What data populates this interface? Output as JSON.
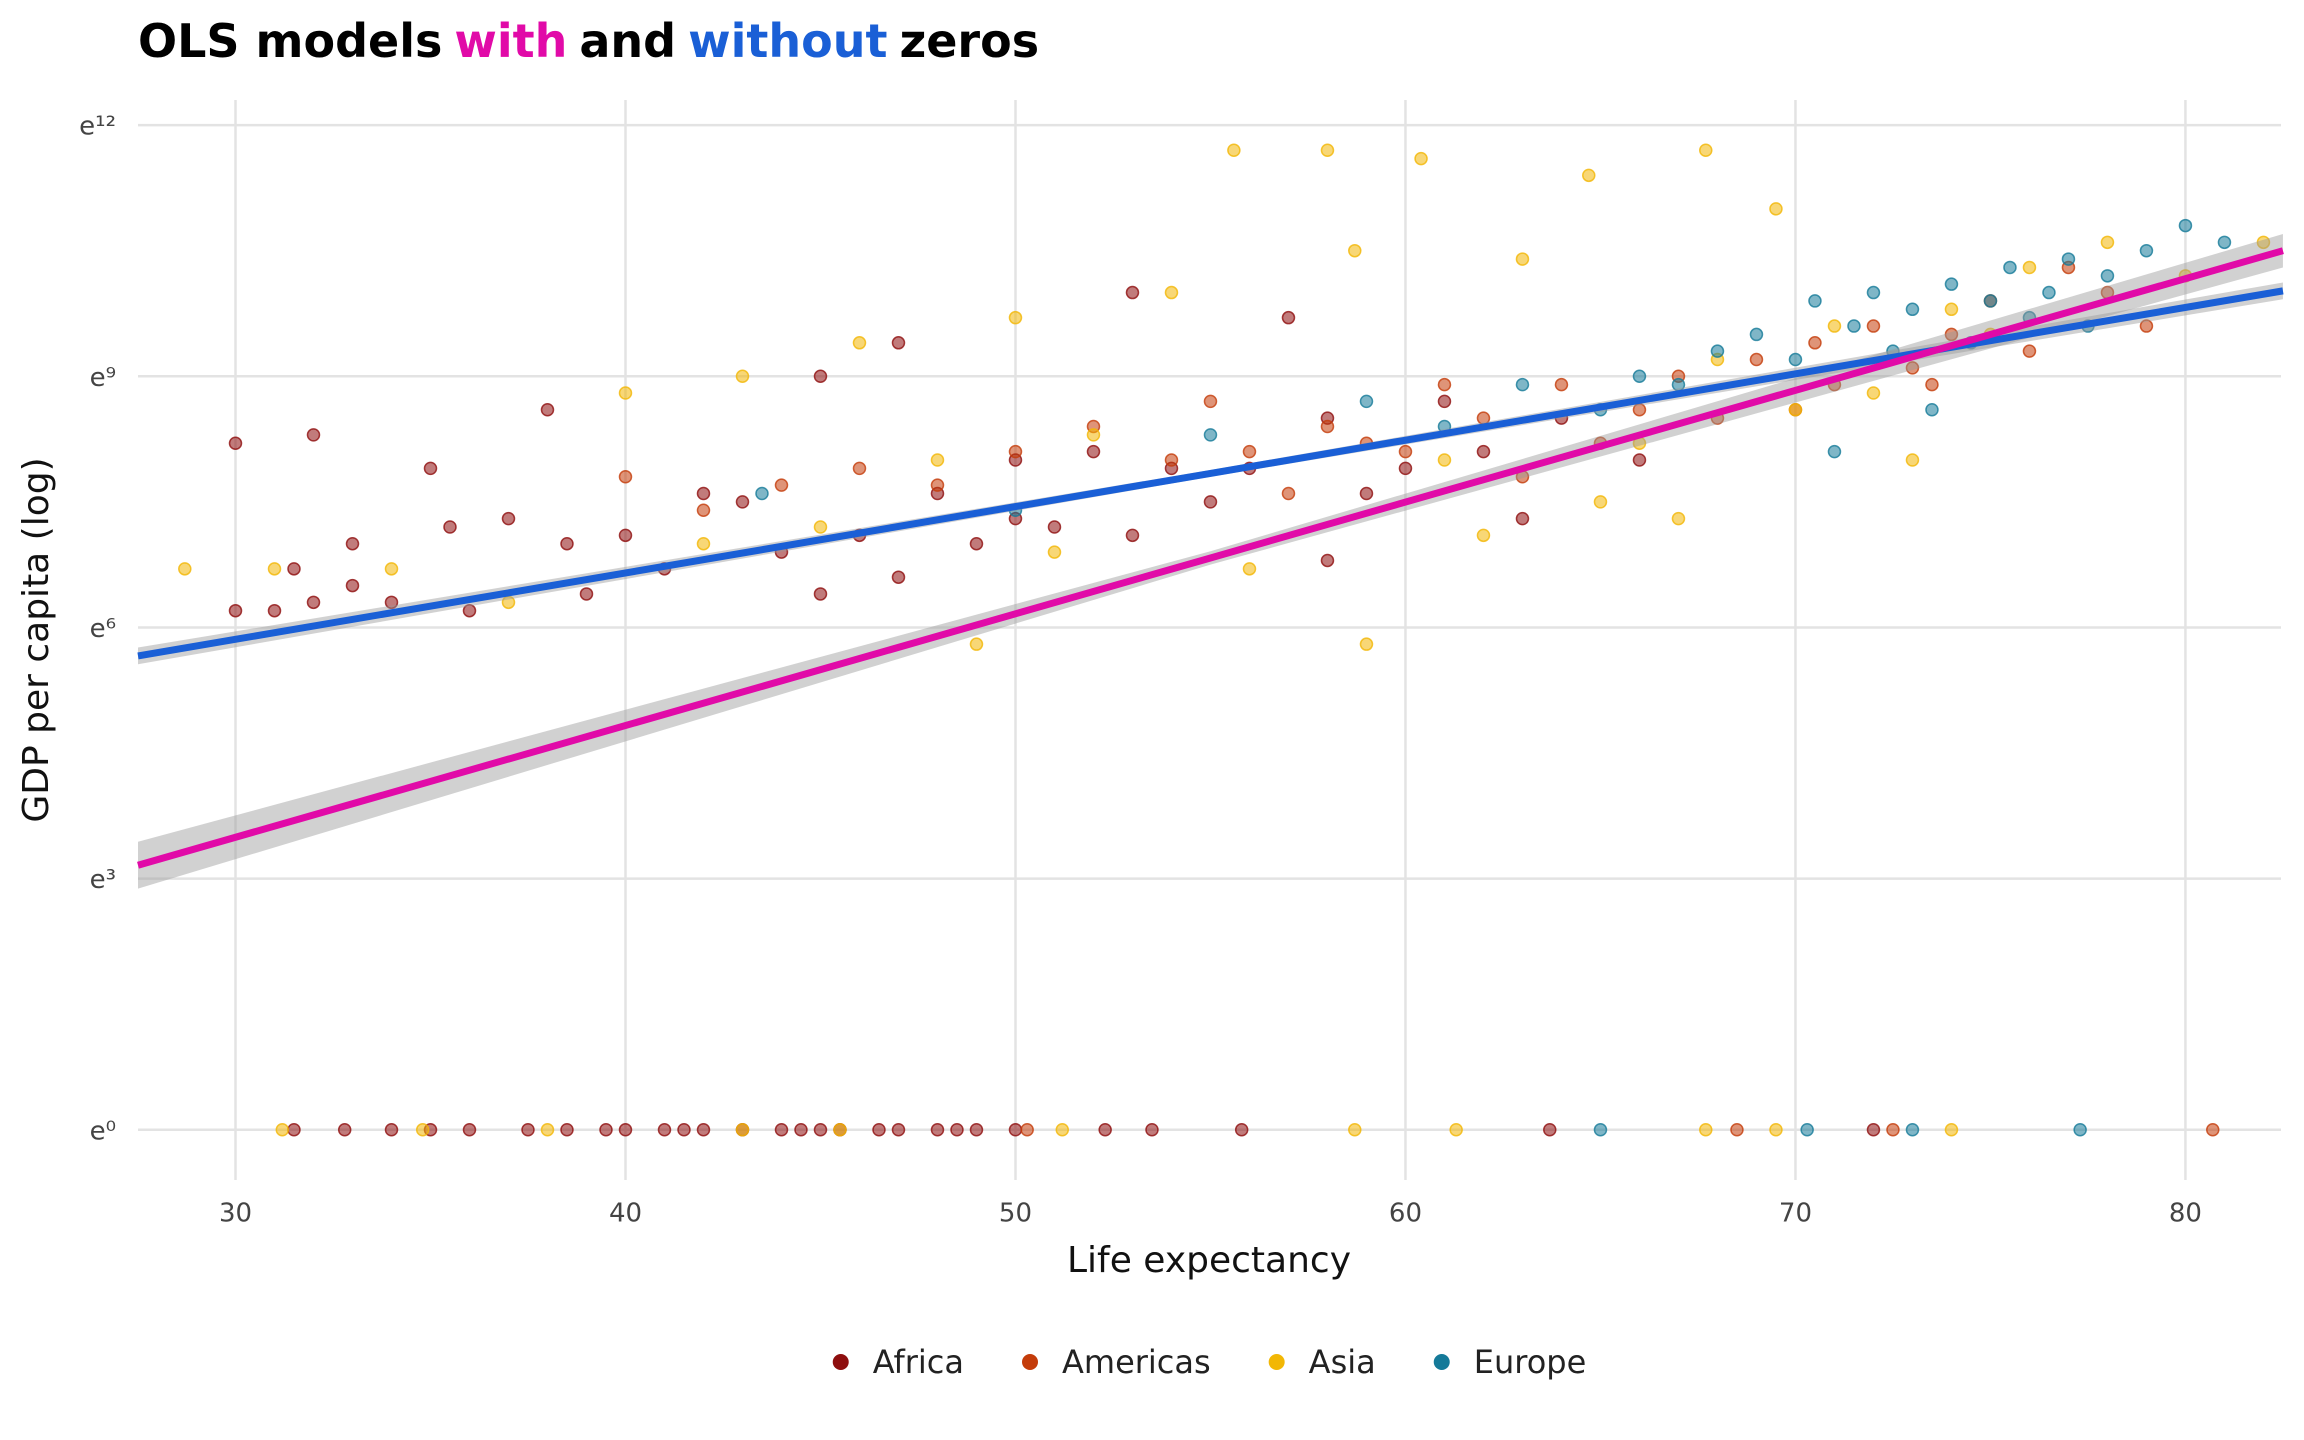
{
  "chart_data": {
    "type": "scatter",
    "title": [
      {
        "text": "OLS models",
        "color": "#000000"
      },
      {
        "text": "with",
        "color": "#e10aa8"
      },
      {
        "text": "and",
        "color": "#000000"
      },
      {
        "text": "without",
        "color": "#1a5fd6"
      },
      {
        "text": "zeros",
        "color": "#000000"
      }
    ],
    "x_label": "Life expectancy",
    "y_label": "GDP per capita (log)",
    "xlim": [
      27.5,
      82.45
    ],
    "ylim": [
      -0.6,
      12.3
    ],
    "xticks": [
      30,
      40,
      50,
      60,
      70,
      80
    ],
    "yticks": [
      {
        "value": 0,
        "label": "e⁰"
      },
      {
        "value": 3,
        "label": "e³"
      },
      {
        "value": 6,
        "label": "e⁶"
      },
      {
        "value": 9,
        "label": "e⁹"
      },
      {
        "value": 12,
        "label": "e¹²"
      }
    ],
    "grid": true,
    "legend": "bottom",
    "series": [
      {
        "name": "Africa",
        "color": "#8e0e0e",
        "x": [
          30,
          30,
          31,
          31.5,
          32,
          32,
          33,
          33,
          34,
          35,
          35.5,
          36,
          37,
          38,
          38.5,
          39,
          40,
          41,
          42,
          43,
          44,
          45,
          45,
          46,
          47,
          47,
          48,
          49,
          50,
          50,
          51,
          52,
          53,
          53,
          54,
          55,
          56,
          57,
          58,
          58,
          59,
          60,
          61,
          62,
          63,
          64,
          66,
          31.5,
          32.8,
          34,
          35,
          36,
          37.5,
          38.5,
          39.5,
          40,
          41,
          41.5,
          42,
          43,
          44,
          44.5,
          45,
          45.5,
          46.5,
          47,
          48,
          48.5,
          49,
          50,
          52.3,
          53.5,
          55.8,
          63.7,
          72
        ],
        "values": [
          8.2,
          6.2,
          6.2,
          6.7,
          8.3,
          6.3,
          6.5,
          7.0,
          6.3,
          7.9,
          7.2,
          6.2,
          7.3,
          8.6,
          7.0,
          6.4,
          7.1,
          6.7,
          7.6,
          7.5,
          6.9,
          9.0,
          6.4,
          7.1,
          9.4,
          6.6,
          7.6,
          7.0,
          8.0,
          7.3,
          7.2,
          8.1,
          10.0,
          7.1,
          7.9,
          7.5,
          7.9,
          9.7,
          8.5,
          6.8,
          7.6,
          7.9,
          8.7,
          8.1,
          7.3,
          8.5,
          8.0,
          0,
          0,
          0,
          0,
          0,
          0,
          0,
          0,
          0,
          0,
          0,
          0,
          0,
          0,
          0,
          0,
          0,
          0,
          0,
          0,
          0,
          0,
          0,
          0,
          0,
          0,
          0,
          0
        ]
      },
      {
        "name": "Americas",
        "color": "#c43c0a",
        "x": [
          40,
          42,
          44,
          46,
          48,
          50,
          52,
          54,
          55,
          56,
          57,
          58,
          59,
          60,
          61,
          62,
          63,
          64,
          65,
          66,
          67,
          68,
          69,
          70,
          70.5,
          71,
          72,
          73,
          73.5,
          74,
          75,
          76,
          77,
          78,
          79,
          50.3,
          68.5,
          72.5,
          80.7
        ],
        "values": [
          7.8,
          7.4,
          7.7,
          7.9,
          7.7,
          8.1,
          8.4,
          8.0,
          8.7,
          8.1,
          7.6,
          8.4,
          8.2,
          8.1,
          8.9,
          8.5,
          7.8,
          8.9,
          8.2,
          8.6,
          9.0,
          8.5,
          9.2,
          8.6,
          9.4,
          8.9,
          9.6,
          9.1,
          8.9,
          9.5,
          9.9,
          9.3,
          10.3,
          10.0,
          9.6,
          0,
          0,
          0,
          0
        ]
      },
      {
        "name": "Asia",
        "color": "#f2b705",
        "x": [
          28.7,
          31,
          34,
          37,
          40,
          42,
          43,
          45,
          46,
          48,
          49,
          50,
          51,
          52,
          54,
          55.6,
          56,
          58,
          58.7,
          59,
          60.4,
          61,
          62,
          63,
          64.7,
          65,
          66,
          67,
          67.7,
          68,
          69.5,
          70,
          71,
          72,
          73,
          74,
          75,
          76,
          78,
          80,
          82,
          31.2,
          34.8,
          38,
          43,
          45.5,
          51.2,
          58.7,
          61.3,
          67.7,
          69.5,
          74
        ],
        "values": [
          6.7,
          6.7,
          6.7,
          6.3,
          8.8,
          7.0,
          9.0,
          7.2,
          9.4,
          8.0,
          5.8,
          9.7,
          6.9,
          8.3,
          10.0,
          11.7,
          6.7,
          11.7,
          10.5,
          5.8,
          11.6,
          8.0,
          7.1,
          10.4,
          11.4,
          7.5,
          8.2,
          7.3,
          11.7,
          9.2,
          11.0,
          8.6,
          9.6,
          8.8,
          8.0,
          9.8,
          9.5,
          10.3,
          10.6,
          10.2,
          10.6,
          0,
          0,
          0,
          0,
          0,
          0,
          0,
          0,
          0,
          0,
          0
        ]
      },
      {
        "name": "Europe",
        "color": "#157a99",
        "x": [
          43.5,
          50,
          55,
          59,
          61,
          63,
          65,
          66,
          67,
          68,
          69,
          70,
          70.5,
          71,
          71.5,
          72,
          72.5,
          73,
          73.5,
          74,
          74.5,
          75,
          75.5,
          76,
          76.5,
          77,
          77.5,
          78,
          79,
          80,
          81,
          65,
          70.3,
          73,
          77.3
        ],
        "values": [
          7.6,
          7.4,
          8.3,
          8.7,
          8.4,
          8.9,
          8.6,
          9.0,
          8.9,
          9.3,
          9.5,
          9.2,
          9.9,
          8.1,
          9.6,
          10.0,
          9.3,
          9.8,
          8.6,
          10.1,
          9.4,
          9.9,
          10.3,
          9.7,
          10.0,
          10.4,
          9.6,
          10.2,
          10.5,
          10.8,
          10.6,
          0,
          0,
          0,
          0
        ]
      }
    ],
    "fits": [
      {
        "color": "#1a5fd6",
        "x": [
          27.5,
          55,
          82.5
        ],
        "values": [
          5.66,
          7.84,
          10.02
        ],
        "lower": [
          5.56,
          7.8,
          9.92
        ],
        "upper": [
          5.76,
          7.88,
          10.12
        ]
      },
      {
        "color": "#e10aa8",
        "x": [
          27.5,
          55,
          82.5
        ],
        "values": [
          3.16,
          6.83,
          10.5
        ],
        "lower": [
          2.88,
          6.75,
          10.3
        ],
        "upper": [
          3.44,
          6.91,
          10.7
        ]
      }
    ]
  }
}
